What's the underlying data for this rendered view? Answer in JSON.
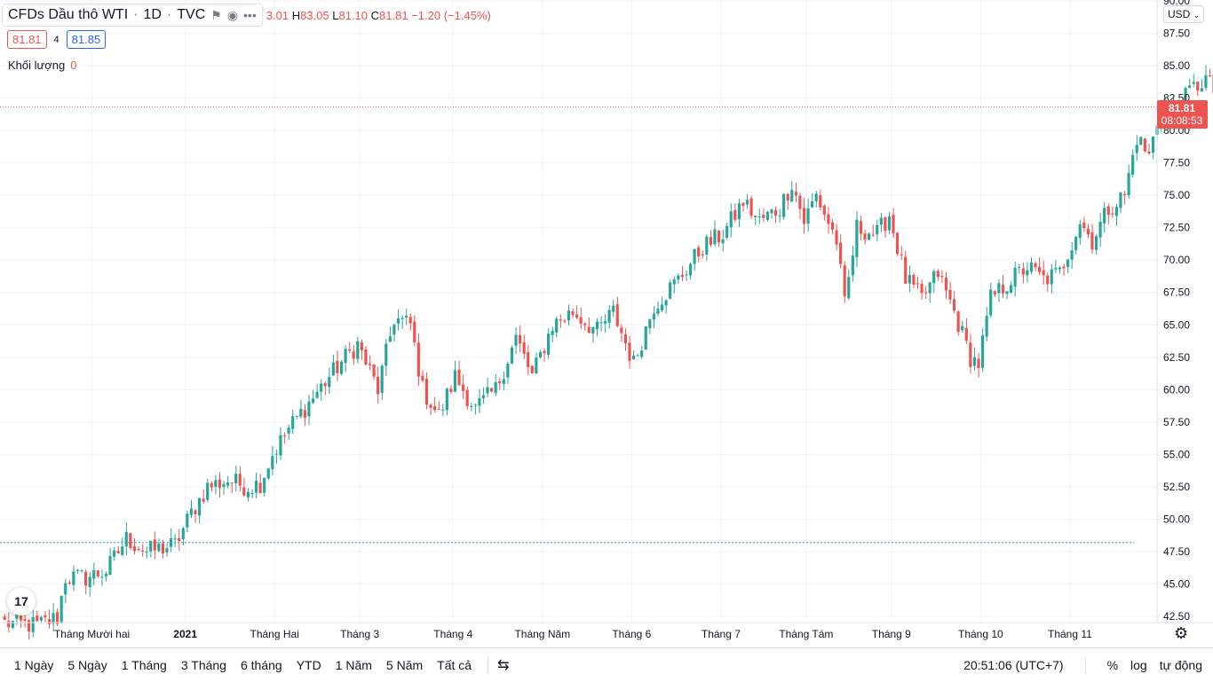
{
  "header": {
    "symbol": "CFDs Dầu thô WTI",
    "interval": "1D",
    "source": "TVC",
    "ohlc": {
      "o_tail": "3.01",
      "h_label": "H",
      "h": "83.05",
      "l_label": "L",
      "l": "81.10",
      "c_label": "C",
      "c": "81.81",
      "change": "−1.20 (−1.45%)"
    }
  },
  "prices": {
    "sell": "81.81",
    "spread": "4",
    "buy": "81.85"
  },
  "volume": {
    "label": "Khối lượng",
    "value": "0"
  },
  "currency": "USD",
  "last_price": {
    "value": "81.81",
    "countdown": "08:08:53"
  },
  "bottom_bar": {
    "ranges": [
      "1 Ngày",
      "5 Ngày",
      "1 Tháng",
      "3 Tháng",
      "6 tháng",
      "YTD",
      "1 Năm",
      "5 Năm",
      "Tất cả"
    ],
    "time": "20:51:06 (UTC+7)",
    "percent": "%",
    "log": "log",
    "auto": "tự động"
  },
  "colors": {
    "up": "#26a69a",
    "down": "#ef5350",
    "grid": "#f0f3fa",
    "axis_text": "#131722"
  },
  "icons": [
    "eye-icon",
    "more-icon",
    "flag-icon",
    "compare-range-icon",
    "gear-icon",
    "tradingview-logo-icon"
  ],
  "chart_data": {
    "type": "candlestick",
    "ylim": [
      42.5,
      90
    ],
    "y_ticks": [
      42.5,
      45,
      47.5,
      50,
      52.5,
      55,
      57.5,
      60,
      62.5,
      65,
      67.5,
      70,
      72.5,
      75,
      77.5,
      80,
      82.5,
      85,
      87.5,
      90
    ],
    "x_tick_labels": [
      "Tháng Mười hai",
      "2021",
      "Tháng Hai",
      "Tháng 3",
      "Tháng 4",
      "Tháng Năm",
      "Tháng 6",
      "Tháng 7",
      "Tháng Tám",
      "Tháng 9",
      "Tháng 10",
      "Tháng 11"
    ],
    "x_tick_bar_index": [
      22,
      45,
      67,
      88,
      111,
      133,
      155,
      177,
      198,
      219,
      241,
      263
    ],
    "reference_line": 48.2,
    "last_value": 81.81,
    "anchors": [
      [
        0,
        42.0
      ],
      [
        8,
        41.8
      ],
      [
        13,
        42.4
      ],
      [
        15,
        45.5
      ],
      [
        20,
        45.5
      ],
      [
        25,
        46.0
      ],
      [
        30,
        48.5
      ],
      [
        35,
        47.5
      ],
      [
        42,
        48.0
      ],
      [
        46,
        50.5
      ],
      [
        50,
        52.5
      ],
      [
        55,
        53.0
      ],
      [
        60,
        52.5
      ],
      [
        63,
        52.8
      ],
      [
        66,
        55.0
      ],
      [
        70,
        57.0
      ],
      [
        75,
        59.0
      ],
      [
        80,
        61.0
      ],
      [
        84,
        62.5
      ],
      [
        87,
        63.5
      ],
      [
        92,
        60.0
      ],
      [
        96,
        65.5
      ],
      [
        100,
        65.0
      ],
      [
        103,
        60.0
      ],
      [
        107,
        58.0
      ],
      [
        111,
        61.0
      ],
      [
        116,
        58.5
      ],
      [
        121,
        60.0
      ],
      [
        126,
        64.0
      ],
      [
        130,
        61.0
      ],
      [
        135,
        65.0
      ],
      [
        140,
        66.0
      ],
      [
        146,
        64.5
      ],
      [
        150,
        66.0
      ],
      [
        155,
        62.0
      ],
      [
        160,
        66.5
      ],
      [
        166,
        68.5
      ],
      [
        172,
        71.0
      ],
      [
        177,
        72.0
      ],
      [
        182,
        74.5
      ],
      [
        186,
        73.0
      ],
      [
        191,
        74.0
      ],
      [
        194,
        76.0
      ],
      [
        197,
        73.0
      ],
      [
        200,
        75.0
      ],
      [
        205,
        71.5
      ],
      [
        207,
        66.5
      ],
      [
        210,
        72.5
      ],
      [
        215,
        72.0
      ],
      [
        218,
        73.5
      ],
      [
        222,
        68.5
      ],
      [
        226,
        67.0
      ],
      [
        230,
        69.0
      ],
      [
        234,
        66.0
      ],
      [
        238,
        62.5
      ],
      [
        240,
        62.0
      ],
      [
        243,
        67.0
      ],
      [
        248,
        68.5
      ],
      [
        252,
        69.5
      ],
      [
        256,
        68.5
      ],
      [
        260,
        69.0
      ],
      [
        265,
        73.0
      ],
      [
        268,
        71.5
      ],
      [
        272,
        74.0
      ],
      [
        276,
        75.0
      ],
      [
        279,
        79.5
      ],
      [
        282,
        78.0
      ],
      [
        285,
        82.0
      ],
      [
        289,
        81.5
      ],
      [
        292,
        83.0
      ],
      [
        296,
        84.0
      ],
      [
        300,
        82.0
      ],
      [
        303,
        84.0
      ],
      [
        307,
        81.8
      ]
    ]
  }
}
